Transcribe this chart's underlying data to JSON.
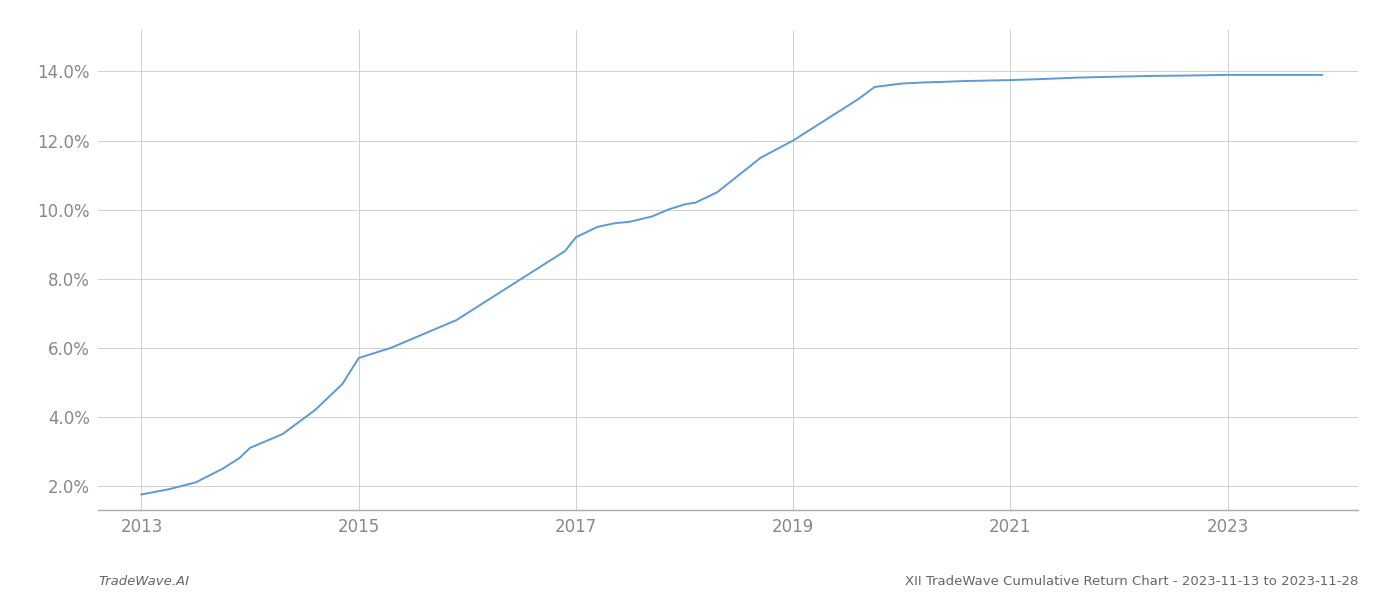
{
  "title": "",
  "footer_left": "TradeWave.AI",
  "footer_right": "XII TradeWave Cumulative Return Chart - 2023-11-13 to 2023-11-28",
  "line_color": "#5b9bd5",
  "background_color": "#ffffff",
  "grid_color": "#d0d0d0",
  "x_years": [
    2013.0,
    2013.25,
    2013.5,
    2013.75,
    2013.9,
    2014.0,
    2014.3,
    2014.6,
    2014.85,
    2015.0,
    2015.3,
    2015.6,
    2015.9,
    2016.1,
    2016.4,
    2016.7,
    2016.9,
    2017.0,
    2017.2,
    2017.35,
    2017.5,
    2017.7,
    2017.85,
    2018.0,
    2018.1,
    2018.3,
    2018.5,
    2018.7,
    2019.0,
    2019.2,
    2019.4,
    2019.6,
    2019.75,
    2020.0,
    2020.2,
    2020.4,
    2020.55,
    2021.0,
    2021.3,
    2021.6,
    2022.0,
    2022.3,
    2022.6,
    2023.0,
    2023.87
  ],
  "y_values": [
    1.75,
    1.9,
    2.1,
    2.5,
    2.8,
    3.1,
    3.5,
    4.2,
    4.95,
    5.7,
    6.0,
    6.4,
    6.8,
    7.2,
    7.8,
    8.4,
    8.8,
    9.2,
    9.5,
    9.6,
    9.65,
    9.8,
    10.0,
    10.15,
    10.2,
    10.5,
    11.0,
    11.5,
    12.0,
    12.4,
    12.8,
    13.2,
    13.55,
    13.65,
    13.68,
    13.7,
    13.72,
    13.75,
    13.78,
    13.82,
    13.85,
    13.87,
    13.88,
    13.9,
    13.9
  ],
  "xlim": [
    2012.6,
    2024.2
  ],
  "ylim": [
    1.3,
    15.2
  ],
  "yticks": [
    2.0,
    4.0,
    6.0,
    8.0,
    10.0,
    12.0,
    14.0
  ],
  "xticks": [
    2013,
    2015,
    2017,
    2019,
    2021,
    2023
  ],
  "line_width": 1.4,
  "footer_fontsize": 9.5,
  "tick_fontsize": 12,
  "tick_color": "#888888",
  "spine_color": "#aaaaaa"
}
